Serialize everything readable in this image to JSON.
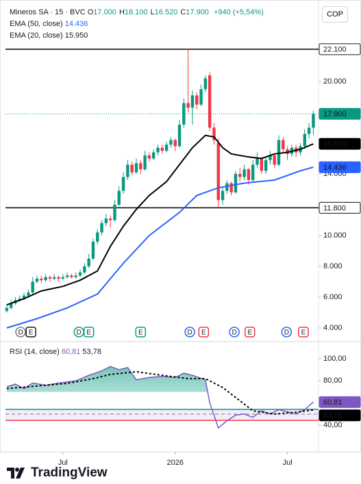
{
  "chart_data": [
    {
      "type": "candlestick",
      "title": "Mineros SA · 15 · BVC",
      "ohlc_legend": [
        {
          "key": "O",
          "value": "17.000"
        },
        {
          "key": "H",
          "value": "18.100"
        },
        {
          "key": "L",
          "value": "16.520"
        },
        {
          "key": "C",
          "value": "17.900"
        }
      ],
      "change": "+940 (+5,54%)",
      "currency": "COP",
      "up_color": "#089981",
      "down_color": "#f23645",
      "open": [
        5.1,
        5.3,
        5.6,
        5.8,
        5.9,
        6.1,
        6.3,
        7.0,
        7.2,
        7.1,
        7.3,
        7.2,
        7.3,
        7.2,
        7.3,
        7.4,
        7.3,
        7.4,
        7.6,
        8.0,
        8.5,
        9.6,
        10.2,
        10.8,
        11.1,
        11.0,
        12.0,
        12.9,
        13.8,
        14.6,
        14.1,
        14.7,
        14.3,
        15.2,
        15.0,
        15.4,
        15.7,
        15.5,
        15.9,
        16.2,
        15.8,
        17.2,
        18.6,
        18.3,
        19.1,
        18.5,
        19.5,
        20.4,
        17.0,
        16.0,
        12.3,
        12.9,
        13.4,
        12.8,
        14.0,
        13.8,
        14.3,
        13.6,
        14.6,
        15.0,
        14.2,
        14.9,
        15.2,
        14.6,
        16.2,
        15.6,
        15.3,
        15.7,
        15.4,
        15.8,
        16.6,
        17.0
      ],
      "high": [
        5.5,
        5.8,
        6.0,
        6.1,
        6.3,
        6.5,
        7.3,
        7.4,
        7.4,
        7.5,
        7.4,
        7.5,
        7.4,
        7.5,
        7.6,
        7.5,
        7.6,
        7.8,
        8.2,
        8.8,
        9.8,
        10.4,
        11.0,
        11.4,
        11.3,
        12.3,
        13.2,
        14.1,
        14.9,
        14.8,
        15.0,
        14.9,
        15.5,
        15.4,
        15.6,
        15.9,
        15.9,
        16.1,
        16.4,
        16.3,
        17.5,
        18.9,
        22.1,
        19.4,
        19.3,
        19.8,
        20.4,
        20.6,
        17.3,
        16.3,
        13.2,
        13.6,
        13.5,
        14.2,
        14.4,
        14.6,
        14.4,
        14.9,
        15.4,
        15.1,
        15.1,
        15.5,
        15.3,
        16.5,
        16.4,
        15.8,
        15.9,
        15.9,
        16.0,
        16.9,
        17.3,
        18.1
      ],
      "low": [
        5.0,
        5.2,
        5.5,
        5.7,
        5.8,
        6.0,
        6.2,
        6.9,
        6.9,
        7.0,
        7.0,
        7.1,
        7.0,
        7.1,
        7.2,
        7.2,
        7.2,
        7.3,
        7.5,
        7.9,
        8.4,
        9.4,
        10.0,
        10.6,
        10.5,
        10.9,
        11.9,
        12.7,
        13.6,
        13.9,
        14.0,
        14.0,
        14.2,
        14.8,
        14.9,
        15.2,
        15.3,
        15.4,
        15.7,
        15.5,
        15.7,
        17.0,
        18.0,
        17.2,
        18.2,
        18.4,
        19.3,
        16.8,
        15.9,
        11.8,
        12.0,
        12.7,
        12.6,
        12.7,
        13.5,
        13.6,
        13.3,
        13.5,
        14.4,
        14.0,
        14.0,
        14.6,
        14.4,
        14.5,
        15.4,
        14.9,
        15.1,
        15.1,
        15.2,
        15.6,
        16.3,
        16.52
      ],
      "close": [
        5.3,
        5.6,
        5.8,
        5.9,
        6.1,
        6.3,
        7.0,
        7.2,
        7.1,
        7.3,
        7.2,
        7.3,
        7.2,
        7.3,
        7.4,
        7.3,
        7.4,
        7.6,
        8.0,
        8.5,
        9.6,
        10.2,
        10.8,
        11.1,
        11.0,
        12.0,
        12.9,
        13.8,
        14.6,
        14.1,
        14.7,
        14.3,
        15.2,
        15.0,
        15.4,
        15.7,
        15.5,
        15.9,
        16.2,
        15.8,
        17.2,
        18.6,
        18.3,
        19.1,
        18.5,
        19.5,
        20.2,
        17.0,
        16.2,
        12.3,
        12.9,
        13.4,
        12.8,
        14.0,
        13.8,
        14.3,
        13.6,
        14.6,
        15.0,
        14.2,
        14.9,
        15.2,
        14.6,
        16.2,
        15.6,
        15.3,
        15.7,
        15.4,
        15.8,
        16.6,
        17.0,
        17.9
      ],
      "xlim": [
        -0.3,
        72.2
      ],
      "xticks": [
        {
          "value": 13,
          "label": "Jul"
        },
        {
          "value": 39,
          "label": "2026"
        },
        {
          "value": 65,
          "label": "Jul"
        }
      ],
      "ylim": [
        3.2,
        25.07
      ],
      "yticks": [
        {
          "value": 4,
          "label": "4.000"
        },
        {
          "value": 6,
          "label": "6.000"
        },
        {
          "value": 8,
          "label": "8.000"
        },
        {
          "value": 10,
          "label": "10.000"
        },
        {
          "value": 14,
          "label": "14.000"
        },
        {
          "value": 20,
          "label": "20.000"
        }
      ],
      "overlays": [
        {
          "name": "EMA (50, close)",
          "color": "#2962ff",
          "x": [
            0,
            7,
            14,
            21,
            27,
            33,
            40,
            44,
            49,
            55,
            62,
            68,
            71
          ],
          "values": [
            4.0,
            4.6,
            5.3,
            6.2,
            8.2,
            10.0,
            11.5,
            12.6,
            13.1,
            13.4,
            13.6,
            14.2,
            14.436
          ],
          "last_label": "14.436"
        },
        {
          "name": "EMA (20, close)",
          "color": "#000000",
          "x": [
            0,
            4,
            8,
            13,
            17,
            21,
            24,
            27,
            30,
            33,
            37,
            40,
            43,
            46,
            48,
            50,
            52,
            56,
            59,
            62,
            65,
            68,
            71
          ],
          "values": [
            5.5,
            5.9,
            6.4,
            6.7,
            7.1,
            7.7,
            9.3,
            10.6,
            11.7,
            12.6,
            13.5,
            14.6,
            15.7,
            16.5,
            16.4,
            15.7,
            15.3,
            15.1,
            15.0,
            15.3,
            15.4,
            15.6,
            15.95
          ],
          "last_label": "15.950"
        }
      ],
      "price_lines": [
        {
          "value": 22.1,
          "label": "22.100"
        },
        {
          "value": 11.8,
          "label": "11.800"
        }
      ],
      "last_price": {
        "value": 17.9,
        "label": "17.900"
      },
      "events": [
        {
          "x": 3.2,
          "label": "D",
          "color": "#787b86"
        },
        {
          "x": 5.6,
          "label": "E",
          "color": "#131722"
        },
        {
          "x": 16.7,
          "label": "D",
          "color": "#089981"
        },
        {
          "x": 19,
          "label": "E",
          "color": "#089981"
        },
        {
          "x": 31,
          "label": "E",
          "color": "#089981"
        },
        {
          "x": 42.4,
          "label": "D",
          "color": "#2962ff"
        },
        {
          "x": 45.6,
          "label": "E",
          "color": "#f23645"
        },
        {
          "x": 52.7,
          "label": "D",
          "color": "#2962ff"
        },
        {
          "x": 56.3,
          "label": "E",
          "color": "#f23645"
        },
        {
          "x": 64.8,
          "label": "D",
          "color": "#2962ff"
        },
        {
          "x": 68.7,
          "label": "E",
          "color": "#f23645"
        }
      ]
    },
    {
      "type": "line",
      "title": "RSI (14, close)",
      "xlim": [
        -0.3,
        72.2
      ],
      "ylim": [
        15.9,
        111.7
      ],
      "yticks": [
        {
          "value": 100,
          "label": "100,00"
        },
        {
          "value": 80,
          "label": "80,00"
        },
        {
          "value": 40,
          "label": "40,00"
        }
      ],
      "series": [
        {
          "color": "#7e57c2",
          "x": [
            0,
            2,
            4,
            6,
            9,
            12,
            16,
            19,
            22,
            24,
            26,
            28,
            30,
            33,
            36,
            39,
            41,
            43,
            46,
            47,
            49,
            51,
            53,
            55,
            57,
            59,
            61,
            63,
            65,
            67,
            69,
            71
          ],
          "values": [
            74.6,
            77,
            73,
            78,
            76,
            78,
            80,
            85,
            89,
            93,
            90,
            92,
            81,
            83,
            84,
            83,
            87,
            85,
            81,
            60,
            37.5,
            44,
            49,
            50,
            47,
            53,
            50,
            54,
            52,
            50,
            54,
            60.81
          ],
          "last_label": "60,81"
        },
        {
          "color": "#000000",
          "dashed": true,
          "x": [
            0,
            6,
            14,
            20,
            24,
            30,
            36,
            42,
            46,
            50,
            53,
            57,
            62,
            67,
            71
          ],
          "values": [
            73,
            75,
            77.7,
            82,
            85.8,
            88.2,
            85,
            82,
            82,
            74,
            65,
            53,
            50,
            51.7,
            53.78
          ],
          "last_label": "53,78"
        }
      ],
      "overbought": 70,
      "midline": 50,
      "bands": [
        {
          "value": 54.2,
          "color": "#089981"
        },
        {
          "value": 44.3,
          "color": "#f23645"
        }
      ]
    }
  ]
}
